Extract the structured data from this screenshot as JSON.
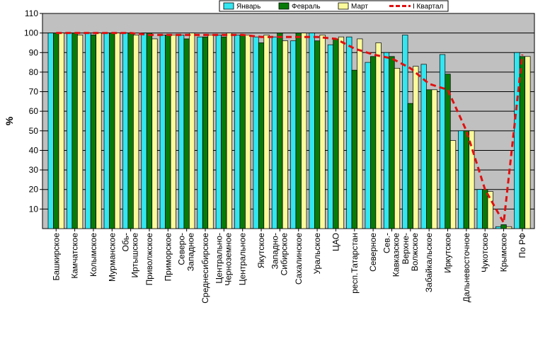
{
  "chart_data": {
    "type": "bar",
    "ylabel": "%",
    "ylim": [
      0,
      110
    ],
    "yticks": [
      "10",
      "20",
      "30",
      "40",
      "50",
      "60",
      "70",
      "80",
      "90",
      "100",
      "110"
    ],
    "grid": true,
    "legend_position": "top",
    "categories": [
      [
        "Башкирское"
      ],
      [
        "Камчатское"
      ],
      [
        "Колымское"
      ],
      [
        "Мурманское"
      ],
      [
        "Обь-",
        "Иртышское"
      ],
      [
        "Приволжское"
      ],
      [
        "Приморское"
      ],
      [
        "Северо-",
        "Западное"
      ],
      [
        "Среднесибирское"
      ],
      [
        "Центрально-",
        "Черноземное"
      ],
      [
        "Центральное"
      ],
      [
        "Якутское"
      ],
      [
        "Западно-",
        "Сибирское"
      ],
      [
        "Сахалинское"
      ],
      [
        "Уральское"
      ],
      [
        "ЦАО"
      ],
      [
        "респ.Татарстан"
      ],
      [
        "Северное"
      ],
      [
        "Сев.-",
        "Кавказское"
      ],
      [
        "Верхне-",
        "Волжское"
      ],
      [
        "Забайкальское"
      ],
      [
        "Иркутское"
      ],
      [
        "Дальневосточное"
      ],
      [
        "Чукотское"
      ],
      [
        "Крымское"
      ],
      [
        "По РФ"
      ]
    ],
    "series": [
      {
        "name": "Январь",
        "color": "#33e6f0",
        "values": [
          100,
          100,
          100,
          100,
          100,
          100,
          99,
          99,
          98,
          99,
          99,
          98,
          98,
          96,
          100,
          94,
          98,
          85,
          90,
          99,
          84,
          89,
          50,
          20,
          1,
          90
        ]
      },
      {
        "name": "Февраль",
        "color": "#087a08",
        "values": [
          100,
          100,
          99,
          100,
          100,
          100,
          99,
          97,
          98,
          98,
          99,
          95,
          100,
          100,
          96,
          97,
          81,
          88,
          88,
          64,
          71,
          79,
          50,
          20,
          2,
          88
        ]
      },
      {
        "name": "Март",
        "color": "#fbfb9c",
        "values": [
          100,
          99,
          100,
          100,
          99,
          97,
          99,
          100,
          99,
          100,
          99,
          99,
          96,
          100,
          99,
          98,
          97,
          95,
          82,
          83,
          71,
          45,
          50,
          19,
          1,
          88
        ]
      },
      {
        "name": "I Квартал",
        "color": "#e01010",
        "type": "line",
        "dash": true,
        "values": [
          100,
          100,
          100,
          100,
          100,
          99,
          99,
          99,
          99,
          99,
          99,
          98,
          98,
          98,
          98,
          97,
          92,
          89,
          87,
          82,
          74,
          71,
          50,
          20,
          3,
          89
        ]
      }
    ]
  },
  "colors": {
    "plot_background": "#c0c0c0",
    "bar_outline": "#000000"
  }
}
